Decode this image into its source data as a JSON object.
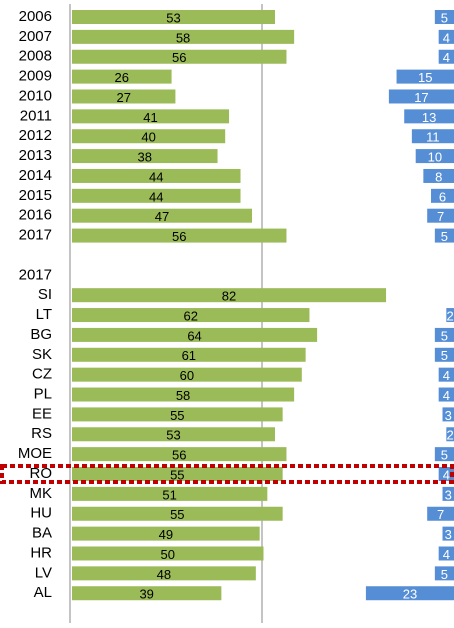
{
  "chart_data": {
    "type": "bar",
    "categories": [
      "2006",
      "2007",
      "2008",
      "2009",
      "2010",
      "2011",
      "2012",
      "2013",
      "2014",
      "2015",
      "2016",
      "2017",
      null,
      "2017",
      "SI",
      "LT",
      "BG",
      "SK",
      "CZ",
      "PL",
      "EE",
      "RS",
      "MOE",
      "RO",
      "MK",
      "HU",
      "BA",
      "HR",
      "LV",
      "AL"
    ],
    "series": [
      {
        "color": "#9bbb59",
        "values": [
          53,
          58,
          56,
          26,
          27,
          41,
          40,
          38,
          44,
          44,
          47,
          56,
          null,
          null,
          82,
          62,
          64,
          61,
          60,
          58,
          55,
          53,
          56,
          55,
          51,
          55,
          49,
          50,
          48,
          39
        ]
      },
      {
        "color": "#558ed5",
        "values": [
          5,
          4,
          4,
          15,
          17,
          13,
          11,
          10,
          8,
          6,
          7,
          5,
          null,
          null,
          null,
          2,
          5,
          5,
          4,
          4,
          3,
          2,
          5,
          4,
          3,
          7,
          3,
          4,
          5,
          23
        ]
      }
    ],
    "xlim": [
      0,
      100
    ],
    "highlight": "RO"
  }
}
